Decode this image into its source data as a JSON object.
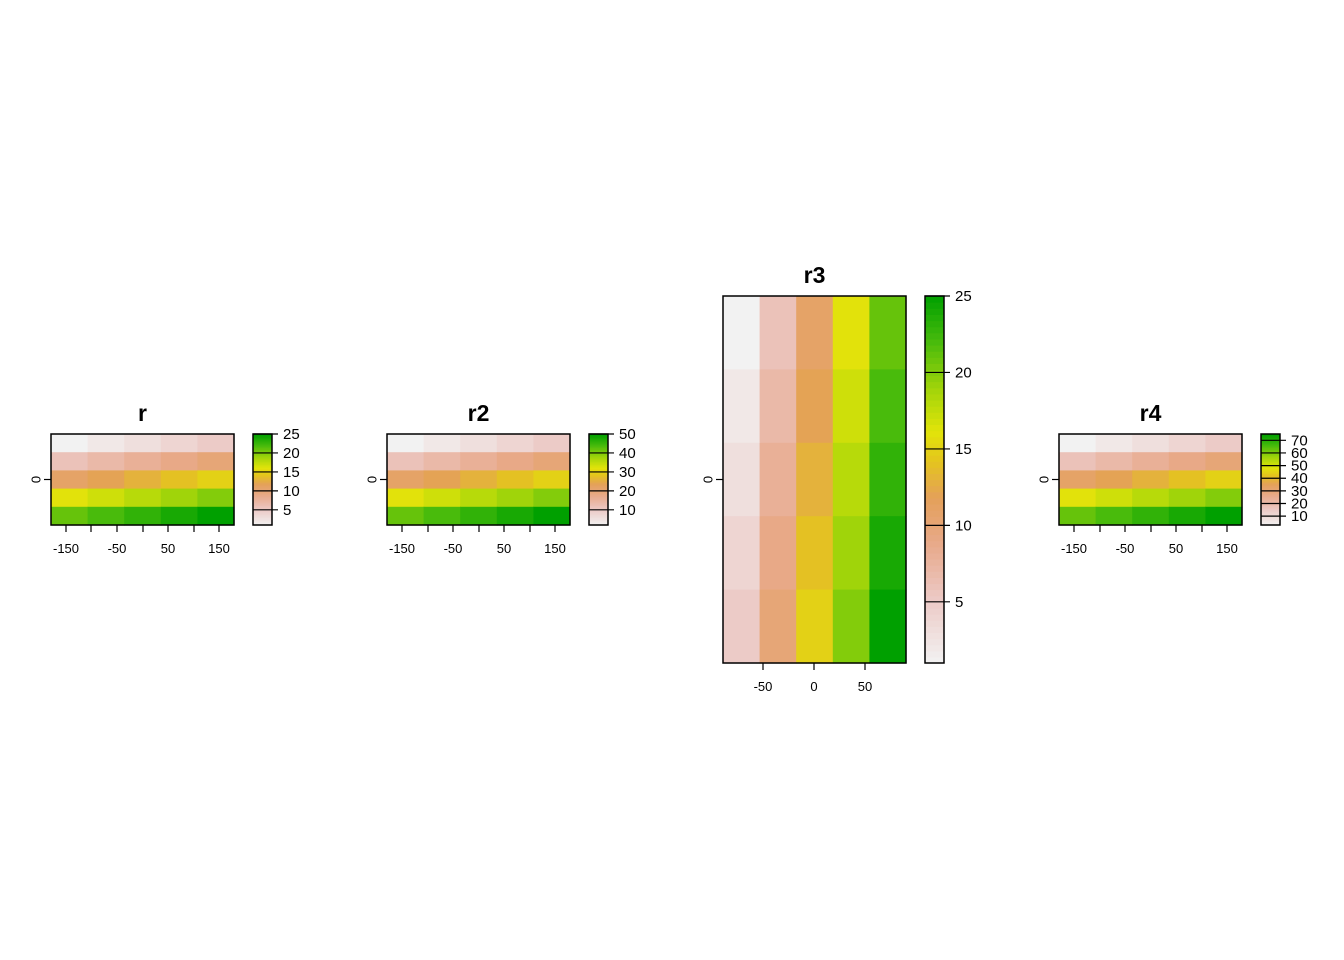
{
  "chart_data": [
    {
      "type": "heatmap",
      "title": "r",
      "rows": 5,
      "cols": 5,
      "values": [
        [
          1,
          2,
          3,
          4,
          5
        ],
        [
          6,
          7,
          8,
          9,
          10
        ],
        [
          11,
          12,
          13,
          14,
          15
        ],
        [
          16,
          17,
          18,
          19,
          20
        ],
        [
          21,
          22,
          23,
          24,
          25
        ]
      ],
      "x_ticks": [
        "-150",
        "-50",
        "50",
        "150"
      ],
      "y_ticks": [
        "0"
      ],
      "legend": {
        "min": 1,
        "max": 25,
        "ticks": [
          "5",
          "10",
          "15",
          "20",
          "25"
        ]
      }
    },
    {
      "type": "heatmap",
      "title": "r2",
      "rows": 5,
      "cols": 5,
      "values": [
        [
          2,
          4,
          6,
          8,
          10
        ],
        [
          12,
          14,
          16,
          18,
          20
        ],
        [
          22,
          24,
          26,
          28,
          30
        ],
        [
          32,
          34,
          36,
          38,
          40
        ],
        [
          42,
          44,
          46,
          48,
          50
        ]
      ],
      "x_ticks": [
        "-150",
        "-50",
        "50",
        "150"
      ],
      "y_ticks": [
        "0"
      ],
      "legend": {
        "min": 2,
        "max": 50,
        "ticks": [
          "10",
          "20",
          "30",
          "40",
          "50"
        ]
      }
    },
    {
      "type": "heatmap",
      "title": "r3",
      "rows": 5,
      "cols": 5,
      "values": [
        [
          1,
          6,
          11,
          16,
          21
        ],
        [
          2,
          7,
          12,
          17,
          22
        ],
        [
          3,
          8,
          13,
          18,
          23
        ],
        [
          4,
          9,
          14,
          19,
          24
        ],
        [
          5,
          10,
          15,
          20,
          25
        ]
      ],
      "x_ticks": [
        "-50",
        "0",
        "50"
      ],
      "y_ticks": [
        "0"
      ],
      "legend": {
        "min": 1,
        "max": 25,
        "ticks": [
          "5",
          "10",
          "15",
          "20",
          "25"
        ]
      }
    },
    {
      "type": "heatmap",
      "title": "r4",
      "rows": 5,
      "cols": 5,
      "values": [
        [
          3,
          6,
          9,
          12,
          15
        ],
        [
          18,
          21,
          24,
          27,
          30
        ],
        [
          33,
          36,
          39,
          42,
          45
        ],
        [
          48,
          51,
          54,
          57,
          60
        ],
        [
          63,
          66,
          69,
          72,
          75
        ]
      ],
      "x_ticks": [
        "-150",
        "-50",
        "50",
        "150"
      ],
      "y_ticks": [
        "0"
      ],
      "legend": {
        "min": 3,
        "max": 75,
        "ticks": [
          "10",
          "20",
          "30",
          "40",
          "50",
          "60",
          "70"
        ]
      }
    }
  ],
  "palette": [
    "#F2F2F2",
    "#EBB25E",
    "#E6E600",
    "#00A600"
  ]
}
